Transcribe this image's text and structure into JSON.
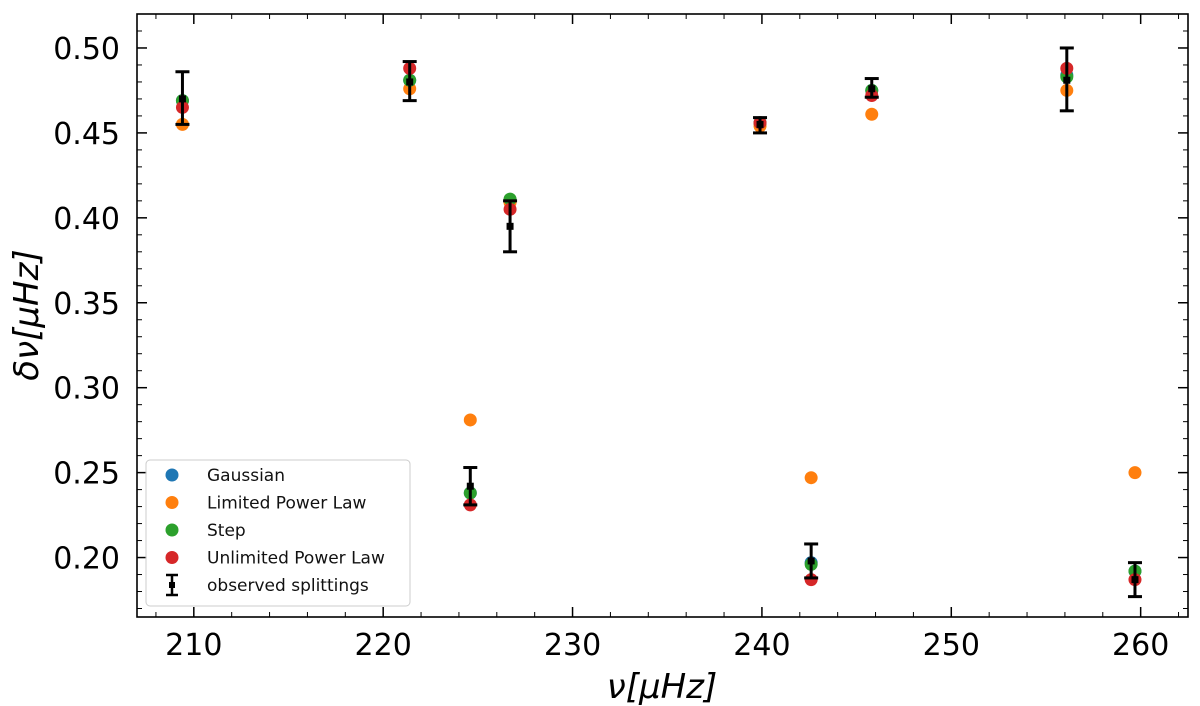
{
  "chart_data": {
    "type": "scatter",
    "title": "",
    "xlabel": "ν[μHz]",
    "ylabel": "δν[μHz]",
    "xlim": [
      207,
      262.5
    ],
    "ylim": [
      0.165,
      0.52
    ],
    "x_ticks": [
      210,
      220,
      230,
      240,
      250,
      260
    ],
    "y_ticks": [
      0.2,
      0.25,
      0.3,
      0.35,
      0.4,
      0.45,
      0.5
    ],
    "x_tick_labels": [
      "210",
      "220",
      "230",
      "240",
      "250",
      "260"
    ],
    "y_tick_labels": [
      "0.20",
      "0.25",
      "0.30",
      "0.35",
      "0.40",
      "0.45",
      "0.50"
    ],
    "grid": false,
    "legend_position": "lower-left",
    "x": [
      209.4,
      221.4,
      224.6,
      226.7,
      239.9,
      242.6,
      245.8,
      256.1,
      259.7
    ],
    "series": [
      {
        "name": "Gaussian",
        "color": "#1f77b4",
        "marker": "circle",
        "values": [
          0.469,
          0.481,
          0.238,
          0.41,
          0.456,
          0.197,
          0.475,
          0.484,
          0.192
        ]
      },
      {
        "name": "Limited Power Law",
        "color": "#ff7f0e",
        "marker": "circle",
        "values": [
          0.455,
          0.476,
          0.281,
          0.409,
          0.454,
          0.247,
          0.461,
          0.475,
          0.25
        ]
      },
      {
        "name": "Step",
        "color": "#2ca02c",
        "marker": "circle",
        "values": [
          0.469,
          0.481,
          0.238,
          0.411,
          0.456,
          0.196,
          0.475,
          0.483,
          0.192
        ]
      },
      {
        "name": "Unlimited Power Law",
        "color": "#d62728",
        "marker": "circle",
        "values": [
          0.465,
          0.488,
          0.231,
          0.405,
          0.456,
          0.187,
          0.472,
          0.488,
          0.187
        ]
      }
    ],
    "observed": {
      "name": "observed splittings",
      "color": "#000000",
      "marker": "square-errorbar",
      "values": [
        0.47,
        0.48,
        0.242,
        0.395,
        0.455,
        0.198,
        0.476,
        0.481,
        0.187
      ],
      "err_low": [
        0.015,
        0.011,
        0.011,
        0.015,
        0.005,
        0.01,
        0.005,
        0.018,
        0.01
      ],
      "err_high": [
        0.016,
        0.012,
        0.011,
        0.015,
        0.004,
        0.01,
        0.006,
        0.019,
        0.01
      ]
    }
  }
}
